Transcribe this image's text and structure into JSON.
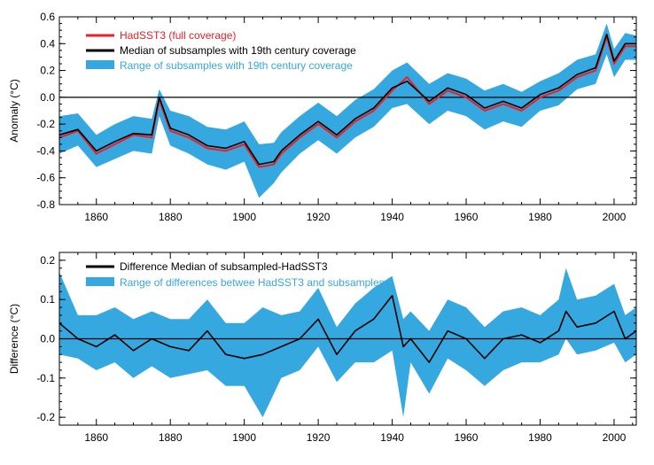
{
  "chart_data": [
    {
      "type": "line",
      "ylabel": "Anomaly (°C)",
      "xlim": [
        1850,
        2006
      ],
      "ylim": [
        -0.8,
        0.6
      ],
      "xticks": [
        1860,
        1880,
        1900,
        1920,
        1940,
        1960,
        1980,
        2000
      ],
      "xtick_labels": [
        "1860",
        "1880",
        "1900",
        "1920",
        "1940",
        "1960",
        "1980",
        "2000"
      ],
      "yticks": [
        -0.8,
        -0.6,
        -0.4,
        -0.2,
        0.0,
        0.2,
        0.4,
        0.6
      ],
      "ytick_labels": [
        "-0.8",
        "-0.6",
        "-0.4",
        "-0.2",
        "0.0",
        "0.2",
        "0.4",
        "0.6"
      ],
      "zero_line": 0,
      "legend_position": "top-left",
      "legend": [
        {
          "label": "HadSST3 (full coverage)",
          "color": "#e8202a",
          "kind": "line"
        },
        {
          "label": "Median of subsamples with 19th century coverage",
          "color": "#000000",
          "kind": "line"
        },
        {
          "label": "Range of subsamples with 19th century coverage",
          "color": "#35a8e0",
          "kind": "band"
        }
      ],
      "x": [
        1850,
        1855,
        1860,
        1865,
        1870,
        1875,
        1877,
        1880,
        1885,
        1890,
        1895,
        1900,
        1904,
        1908,
        1910,
        1915,
        1920,
        1925,
        1930,
        1935,
        1940,
        1944,
        1950,
        1955,
        1960,
        1965,
        1970,
        1975,
        1980,
        1985,
        1990,
        1995,
        1998,
        2000,
        2003,
        2006
      ],
      "series": [
        {
          "name": "HadSST3 (full coverage)",
          "color": "#e8202a",
          "values": [
            -0.3,
            -0.25,
            -0.42,
            -0.35,
            -0.28,
            -0.3,
            -0.02,
            -0.25,
            -0.3,
            -0.38,
            -0.4,
            -0.35,
            -0.52,
            -0.5,
            -0.42,
            -0.3,
            -0.2,
            -0.3,
            -0.18,
            -0.1,
            0.05,
            0.15,
            -0.05,
            0.05,
            0.0,
            -0.1,
            -0.05,
            -0.1,
            0.0,
            0.05,
            0.15,
            0.2,
            0.45,
            0.25,
            0.38,
            0.38
          ]
        },
        {
          "name": "Median of subsamples with 19th century coverage",
          "color": "#000000",
          "values": [
            -0.28,
            -0.24,
            -0.4,
            -0.33,
            -0.27,
            -0.28,
            0.0,
            -0.23,
            -0.28,
            -0.36,
            -0.38,
            -0.33,
            -0.5,
            -0.48,
            -0.4,
            -0.28,
            -0.18,
            -0.28,
            -0.16,
            -0.08,
            0.07,
            0.12,
            -0.03,
            0.07,
            0.02,
            -0.08,
            -0.03,
            -0.08,
            0.02,
            0.07,
            0.17,
            0.22,
            0.47,
            0.27,
            0.4,
            0.4
          ]
        },
        {
          "name": "Range of subsamples with 19th century coverage",
          "color": "#35a8e0",
          "kind": "band",
          "low": [
            -0.42,
            -0.36,
            -0.52,
            -0.46,
            -0.4,
            -0.42,
            -0.14,
            -0.36,
            -0.42,
            -0.5,
            -0.54,
            -0.48,
            -0.75,
            -0.64,
            -0.56,
            -0.42,
            -0.32,
            -0.42,
            -0.3,
            -0.22,
            -0.08,
            -0.05,
            -0.2,
            -0.1,
            -0.14,
            -0.24,
            -0.18,
            -0.22,
            -0.1,
            -0.06,
            0.06,
            0.1,
            0.32,
            0.15,
            0.28,
            0.28
          ],
          "high": [
            -0.14,
            -0.12,
            -0.28,
            -0.2,
            -0.14,
            -0.16,
            0.06,
            -0.1,
            -0.14,
            -0.22,
            -0.24,
            -0.18,
            -0.35,
            -0.34,
            -0.26,
            -0.14,
            -0.04,
            -0.14,
            -0.02,
            0.06,
            0.2,
            0.26,
            0.1,
            0.18,
            0.14,
            0.05,
            0.1,
            0.04,
            0.12,
            0.18,
            0.28,
            0.32,
            0.55,
            0.36,
            0.48,
            0.46
          ]
        }
      ]
    },
    {
      "type": "line",
      "ylabel": "Difference (°C)",
      "xlim": [
        1850,
        2006
      ],
      "ylim": [
        -0.22,
        0.22
      ],
      "xticks": [
        1860,
        1880,
        1900,
        1920,
        1940,
        1960,
        1980,
        2000
      ],
      "xtick_labels": [
        "1860",
        "1880",
        "1900",
        "1920",
        "1940",
        "1960",
        "1980",
        "2000"
      ],
      "yticks": [
        -0.2,
        -0.1,
        0.0,
        0.1,
        0.2
      ],
      "ytick_labels": [
        "-0.2",
        "-0.1",
        "0.0",
        "0.1",
        "0.2"
      ],
      "zero_line": 0,
      "legend_position": "top-left",
      "legend": [
        {
          "label": "Difference Median of subsampled-HadSST3",
          "color": "#000000",
          "kind": "line"
        },
        {
          "label": "Range of differences betwee HadSST3 and subsamples",
          "color": "#35a8e0",
          "kind": "band"
        }
      ],
      "x": [
        1850,
        1855,
        1860,
        1865,
        1870,
        1875,
        1880,
        1885,
        1890,
        1895,
        1900,
        1905,
        1910,
        1915,
        1920,
        1925,
        1930,
        1935,
        1940,
        1943,
        1945,
        1950,
        1955,
        1960,
        1965,
        1970,
        1975,
        1980,
        1985,
        1987,
        1990,
        1995,
        2000,
        2003,
        2006
      ],
      "series": [
        {
          "name": "Difference Median of subsampled-HadSST3",
          "color": "#000000",
          "values": [
            0.04,
            0.0,
            -0.02,
            0.01,
            -0.03,
            0.0,
            -0.02,
            -0.03,
            0.02,
            -0.04,
            -0.05,
            -0.04,
            -0.02,
            0.0,
            0.05,
            -0.04,
            0.02,
            0.05,
            0.11,
            -0.02,
            0.0,
            -0.06,
            0.02,
            0.0,
            -0.05,
            0.0,
            0.01,
            -0.01,
            0.02,
            0.07,
            0.03,
            0.04,
            0.07,
            0.0,
            0.02
          ]
        },
        {
          "name": "Range of differences betwee HadSST3 and subsamples",
          "color": "#35a8e0",
          "kind": "band",
          "low": [
            -0.04,
            -0.05,
            -0.08,
            -0.06,
            -0.1,
            -0.07,
            -0.1,
            -0.09,
            -0.08,
            -0.12,
            -0.12,
            -0.2,
            -0.1,
            -0.08,
            -0.02,
            -0.11,
            -0.06,
            -0.06,
            -0.03,
            -0.2,
            -0.06,
            -0.14,
            -0.05,
            -0.08,
            -0.12,
            -0.08,
            -0.06,
            -0.06,
            -0.04,
            0.0,
            -0.04,
            -0.03,
            -0.01,
            -0.06,
            -0.04
          ]
        },
        {
          "name": "range-high-helper",
          "kind": "band-high",
          "high": [
            0.17,
            0.06,
            0.06,
            0.08,
            0.05,
            0.07,
            0.05,
            0.05,
            0.1,
            0.04,
            0.04,
            0.08,
            0.06,
            0.07,
            0.13,
            0.03,
            0.09,
            0.13,
            0.16,
            0.05,
            0.07,
            0.02,
            0.1,
            0.08,
            0.03,
            0.07,
            0.08,
            0.06,
            0.1,
            0.18,
            0.1,
            0.11,
            0.14,
            0.06,
            0.08
          ]
        }
      ]
    }
  ]
}
